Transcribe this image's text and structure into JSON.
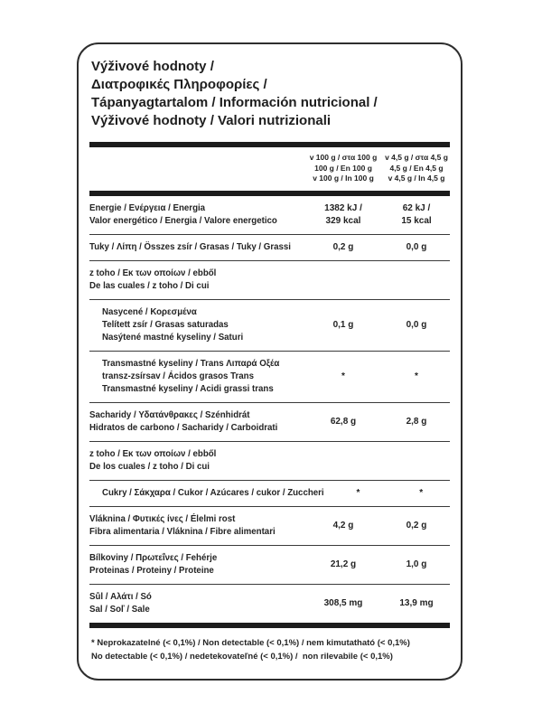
{
  "label": {
    "ink_color": "#1c1c1c",
    "title": "Výživové hodnoty /\nΔιατροφικές Πληροφορίες /\nTápanyagtartalom / Información nutricional /\nVýživové hodnoty / Valori nutrizionali",
    "columns": {
      "per_100g": "v 100 g / στα 100 g\n100 g / En 100 g\nv 100 g / In 100 g",
      "per_4_5g": "v 4,5 g / στα 4,5 g\n4,5 g / En 4,5 g\nv 4,5 g / In 4,5 g"
    },
    "rows": [
      {
        "name": "Energie / Ενέργεια / Energia\nValor energético / Energia / Valore energetico",
        "per_100g": "1382 kJ /\n329 kcal",
        "per_4_5g": "62 kJ /\n15 kcal"
      },
      {
        "name": "Tuky / Λίπη / Összes zsír / Grasas / Tuky / Grassi",
        "per_100g": "0,2 g",
        "per_4_5g": "0,0 g"
      },
      {
        "name": "z toho / Εκ των οποίων / ebből\nDe las cuales / z toho / Di cui",
        "per_100g": "",
        "per_4_5g": ""
      },
      {
        "name": "Nasycené / Κορεσμένα\nTelített zsír / Grasas saturadas\nNasýtené mastné kyseliny / Saturi",
        "per_100g": "0,1 g",
        "per_4_5g": "0,0 g"
      },
      {
        "name": "Transmastné kyseliny / Trans Λιπαρά Οξέα\ntransz-zsírsav / Ácidos grasos Trans\nTransmastné kyseliny / Acidi grassi trans",
        "per_100g": "*",
        "per_4_5g": "*"
      },
      {
        "name": "Sacharidy / Υδατάνθρακες / Szénhidrát\nHidratos de carbono / Sacharidy / Carboidrati",
        "per_100g": "62,8 g",
        "per_4_5g": "2,8 g"
      },
      {
        "name": "z toho / Εκ των οποίων / ebből\nDe los cuales / z toho / Di cui",
        "per_100g": "",
        "per_4_5g": ""
      },
      {
        "name": "Cukry / Σάκχαρα / Cukor / Azúcares / cukor / Zuccheri",
        "per_100g": "*",
        "per_4_5g": "*"
      },
      {
        "name": "Vláknina / Φυτικές ίνες / Élelmi rost\nFibra alimentaria / Vláknina / Fibre alimentari",
        "per_100g": "4,2 g",
        "per_4_5g": "0,2 g"
      },
      {
        "name": "Bílkoviny / Πρωτεΐνες / Fehérje\nProteinas / Proteiny / Proteine",
        "per_100g": "21,2 g",
        "per_4_5g": "1,0 g"
      },
      {
        "name": "Sůl / Αλάτι / Só\nSal / Soľ / Sale",
        "per_100g": "308,5 mg",
        "per_4_5g": "13,9 mg"
      }
    ],
    "footnote": "* Neprokazatelné (< 0,1%) / Non detectable (< 0,1%) / nem kimutatható (< 0,1%)\nNo detectable (< 0,1%) / nedetekovateľné (< 0,1%) /  non rilevabile (< 0,1%)"
  }
}
